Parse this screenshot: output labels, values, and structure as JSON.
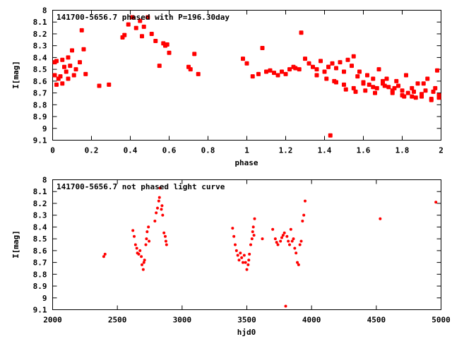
{
  "colors": {
    "points": "#ff0000",
    "axes": "#000000",
    "background": "#ffffff"
  },
  "chart_data": [
    {
      "type": "scatter",
      "title": "141700-5656.7 phased with P=196.30day",
      "xlabel": "phase",
      "ylabel": "I[mag]",
      "xlim": [
        0,
        2
      ],
      "ylim": [
        8,
        9.1
      ],
      "y_inverted": true,
      "grid": false,
      "x_ticks": [
        "0",
        "0.2",
        "0.4",
        "0.6",
        "0.8",
        "1",
        "1.2",
        "1.4",
        "1.6",
        "1.8",
        "2"
      ],
      "y_ticks": [
        "8",
        "8.1",
        "8.2",
        "8.3",
        "8.4",
        "8.5",
        "8.6",
        "8.7",
        "8.8",
        "8.9",
        "9",
        "9.1"
      ],
      "series": [
        {
          "x": [
            0.0,
            0.01,
            0.02,
            0.02,
            0.03,
            0.04,
            0.05,
            0.05,
            0.06,
            0.07,
            0.08,
            0.08,
            0.09,
            0.1,
            0.11,
            0.12,
            0.14,
            0.15,
            0.16,
            0.17,
            0.24,
            0.29,
            0.36,
            0.37,
            0.39,
            0.41,
            0.43,
            0.45,
            0.46,
            0.47,
            0.49,
            0.51,
            0.53,
            0.55,
            0.57,
            0.58,
            0.59,
            0.6,
            0.7,
            0.71,
            0.73,
            0.75,
            0.98,
            1.0,
            1.03,
            1.06,
            1.08,
            1.1,
            1.12,
            1.14,
            1.16,
            1.18,
            1.2,
            1.22,
            1.24,
            1.25,
            1.27,
            1.28,
            1.3,
            1.32,
            1.34,
            1.36,
            1.38,
            1.4,
            1.42,
            1.43,
            1.44,
            1.46,
            1.48,
            1.5,
            1.52,
            1.54,
            1.55,
            1.57,
            1.58,
            1.6,
            1.62,
            1.63,
            1.65,
            1.67,
            1.68,
            1.7,
            1.72,
            1.73,
            1.75,
            1.77,
            1.78,
            1.8,
            1.82,
            1.83,
            1.85,
            1.87,
            1.88,
            1.9,
            1.92,
            1.93,
            1.95,
            1.97,
            1.98,
            2.0,
            1.42,
            1.45,
            1.5,
            1.55,
            1.6,
            1.65,
            1.7,
            1.75,
            1.8,
            1.85,
            1.9,
            1.95,
            1.99,
            1.96,
            1.91,
            1.86,
            1.81,
            1.76,
            1.71,
            1.66,
            1.61,
            1.56,
            1.51,
            1.46,
            1.41,
            1.36
          ],
          "y": [
            8.44,
            8.55,
            8.63,
            8.43,
            8.58,
            8.56,
            8.42,
            8.62,
            8.48,
            8.52,
            8.4,
            8.58,
            8.47,
            8.34,
            8.55,
            8.5,
            8.44,
            8.17,
            8.33,
            8.54,
            8.64,
            8.63,
            8.23,
            8.21,
            8.12,
            8.06,
            8.15,
            8.09,
            8.22,
            8.14,
            8.06,
            8.2,
            8.26,
            8.47,
            8.28,
            8.3,
            8.29,
            8.36,
            8.48,
            8.5,
            8.37,
            8.54,
            8.41,
            8.45,
            8.56,
            8.54,
            8.32,
            8.52,
            8.51,
            8.53,
            8.55,
            8.52,
            8.54,
            8.5,
            8.48,
            8.49,
            8.5,
            8.19,
            8.41,
            8.45,
            8.48,
            8.5,
            8.43,
            8.52,
            8.48,
            9.06,
            8.45,
            8.49,
            8.44,
            8.52,
            8.42,
            8.47,
            8.39,
            8.56,
            8.52,
            8.61,
            8.55,
            8.63,
            8.58,
            8.66,
            8.5,
            8.62,
            8.58,
            8.65,
            8.68,
            8.6,
            8.64,
            8.72,
            8.55,
            8.7,
            8.66,
            8.74,
            8.62,
            8.73,
            8.68,
            8.58,
            8.75,
            8.66,
            8.51,
            8.72,
            8.48,
            8.6,
            8.63,
            8.66,
            8.62,
            8.65,
            8.6,
            8.7,
            8.68,
            8.73,
            8.71,
            8.76,
            8.74,
            8.69,
            8.62,
            8.69,
            8.73,
            8.66,
            8.64,
            8.7,
            8.68,
            8.69,
            8.67,
            8.61,
            8.58,
            8.55
          ]
        }
      ]
    },
    {
      "type": "scatter",
      "title": "141700-5656.7 not phased light curve",
      "xlabel": "hjd0",
      "ylabel": "I[mag]",
      "xlim": [
        2000,
        5000
      ],
      "ylim": [
        8,
        9.1
      ],
      "y_inverted": true,
      "grid": false,
      "x_ticks": [
        "2000",
        "2500",
        "3000",
        "3500",
        "4000",
        "4500",
        "5000"
      ],
      "y_ticks": [
        "8",
        "8.1",
        "8.2",
        "8.3",
        "8.4",
        "8.5",
        "8.6",
        "8.7",
        "8.8",
        "8.9",
        "9",
        "9.1"
      ],
      "series": [
        {
          "x": [
            2395,
            2405,
            2620,
            2630,
            2640,
            2650,
            2655,
            2665,
            2675,
            2685,
            2690,
            2700,
            2705,
            2710,
            2720,
            2725,
            2730,
            2740,
            2745,
            2790,
            2800,
            2810,
            2820,
            2825,
            2830,
            2840,
            2845,
            2850,
            2860,
            2870,
            2875,
            2880,
            3390,
            3400,
            3410,
            3420,
            3430,
            3440,
            3450,
            3460,
            3470,
            3480,
            3490,
            3500,
            3510,
            3515,
            3520,
            3530,
            3540,
            3545,
            3550,
            3555,
            3560,
            3620,
            3700,
            3720,
            3730,
            3740,
            3760,
            3770,
            3780,
            3790,
            3800,
            3810,
            3820,
            3830,
            3840,
            3850,
            3860,
            3870,
            3880,
            3890,
            3900,
            3910,
            3920,
            3930,
            3940,
            3950,
            4530,
            4960
          ],
          "y": [
            8.65,
            8.63,
            8.43,
            8.48,
            8.55,
            8.58,
            8.62,
            8.63,
            8.6,
            8.65,
            8.72,
            8.76,
            8.7,
            8.68,
            8.55,
            8.5,
            8.44,
            8.4,
            8.52,
            8.35,
            8.28,
            8.24,
            8.18,
            8.15,
            8.07,
            8.25,
            8.22,
            8.3,
            8.45,
            8.48,
            8.52,
            8.55,
            8.41,
            8.48,
            8.55,
            8.6,
            8.64,
            8.68,
            8.62,
            8.66,
            8.7,
            8.64,
            8.7,
            8.76,
            8.72,
            8.68,
            8.63,
            8.55,
            8.5,
            8.44,
            8.4,
            8.47,
            8.33,
            8.5,
            8.42,
            8.5,
            8.53,
            8.55,
            8.52,
            8.49,
            8.47,
            8.45,
            9.07,
            8.48,
            8.52,
            8.55,
            8.42,
            8.52,
            8.5,
            8.58,
            8.62,
            8.7,
            8.72,
            8.55,
            8.52,
            8.35,
            8.3,
            8.18,
            8.33,
            8.19
          ]
        }
      ]
    }
  ]
}
